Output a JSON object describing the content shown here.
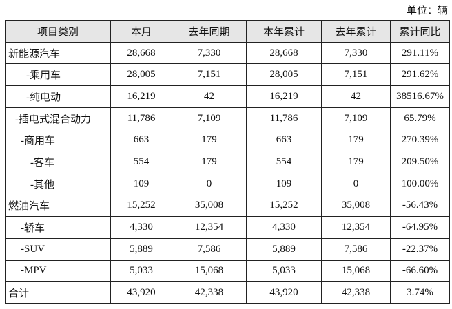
{
  "unit_label": "单位：辆",
  "headers": [
    "项目类别",
    "本月",
    "去年同期",
    "本年累计",
    "去年累计",
    "累计同比"
  ],
  "rows": [
    [
      "新能源汽车",
      "28,668",
      "7,330",
      "28,668",
      "7,330",
      "291.11%"
    ],
    [
      "-乘用车",
      "28,005",
      "7,151",
      "28,005",
      "7,151",
      "291.62%"
    ],
    [
      "-纯电动",
      "16,219",
      "42",
      "16,219",
      "42",
      "38516.67%"
    ],
    [
      "-插电式混合动力",
      "11,786",
      "7,109",
      "11,786",
      "7,109",
      "65.79%"
    ],
    [
      "-商用车",
      "663",
      "179",
      "663",
      "179",
      "270.39%"
    ],
    [
      "-客车",
      "554",
      "179",
      "554",
      "179",
      "209.50%"
    ],
    [
      "-其他",
      "109",
      "0",
      "109",
      "0",
      "100.00%"
    ],
    [
      "燃油汽车",
      "15,252",
      "35,008",
      "15,252",
      "35,008",
      "-56.43%"
    ],
    [
      "-轿车",
      "4,330",
      "12,354",
      "4,330",
      "12,354",
      "-64.95%"
    ],
    [
      "-SUV",
      "5,889",
      "7,586",
      "5,889",
      "7,586",
      "-22.37%"
    ],
    [
      "-MPV",
      "5,033",
      "15,068",
      "5,033",
      "15,068",
      "-66.60%"
    ],
    [
      "合计",
      "43,920",
      "42,338",
      "43,920",
      "42,338",
      "3.74%"
    ]
  ]
}
